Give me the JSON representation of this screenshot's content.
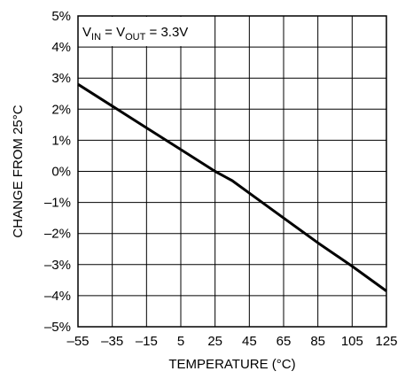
{
  "chart_data": {
    "type": "line",
    "xlabel": "TEMPERATURE (°C)",
    "ylabel": "CHANGE FROM 25°C",
    "xlim": [
      -55,
      125
    ],
    "ylim": [
      -5,
      5
    ],
    "x_ticks": [
      -55,
      -35,
      -15,
      5,
      25,
      45,
      65,
      85,
      105,
      125
    ],
    "x_tick_labels": [
      "–55",
      "–35",
      "–15",
      "5",
      "25",
      "45",
      "65",
      "85",
      "105",
      "125"
    ],
    "y_ticks": [
      5,
      4,
      3,
      2,
      1,
      0,
      -1,
      -2,
      -3,
      -4,
      -5
    ],
    "y_tick_labels": [
      "5%",
      "4%",
      "3%",
      "2%",
      "1%",
      "0%",
      "–1%",
      "–2%",
      "–3%",
      "–4%",
      "–5%"
    ],
    "grid": true,
    "annotation": {
      "v1": "V",
      "sub1": "IN",
      "eq1": " = V",
      "sub2": "OUT",
      "eq2": " = 3.3V"
    },
    "series": [
      {
        "x": [
          -55,
          -35,
          -15,
          5,
          25,
          35,
          45,
          65,
          85,
          105,
          125
        ],
        "y": [
          2.8,
          2.1,
          1.4,
          0.7,
          0.0,
          -0.3,
          -0.7,
          -1.5,
          -2.3,
          -3.05,
          -3.85
        ]
      }
    ]
  }
}
